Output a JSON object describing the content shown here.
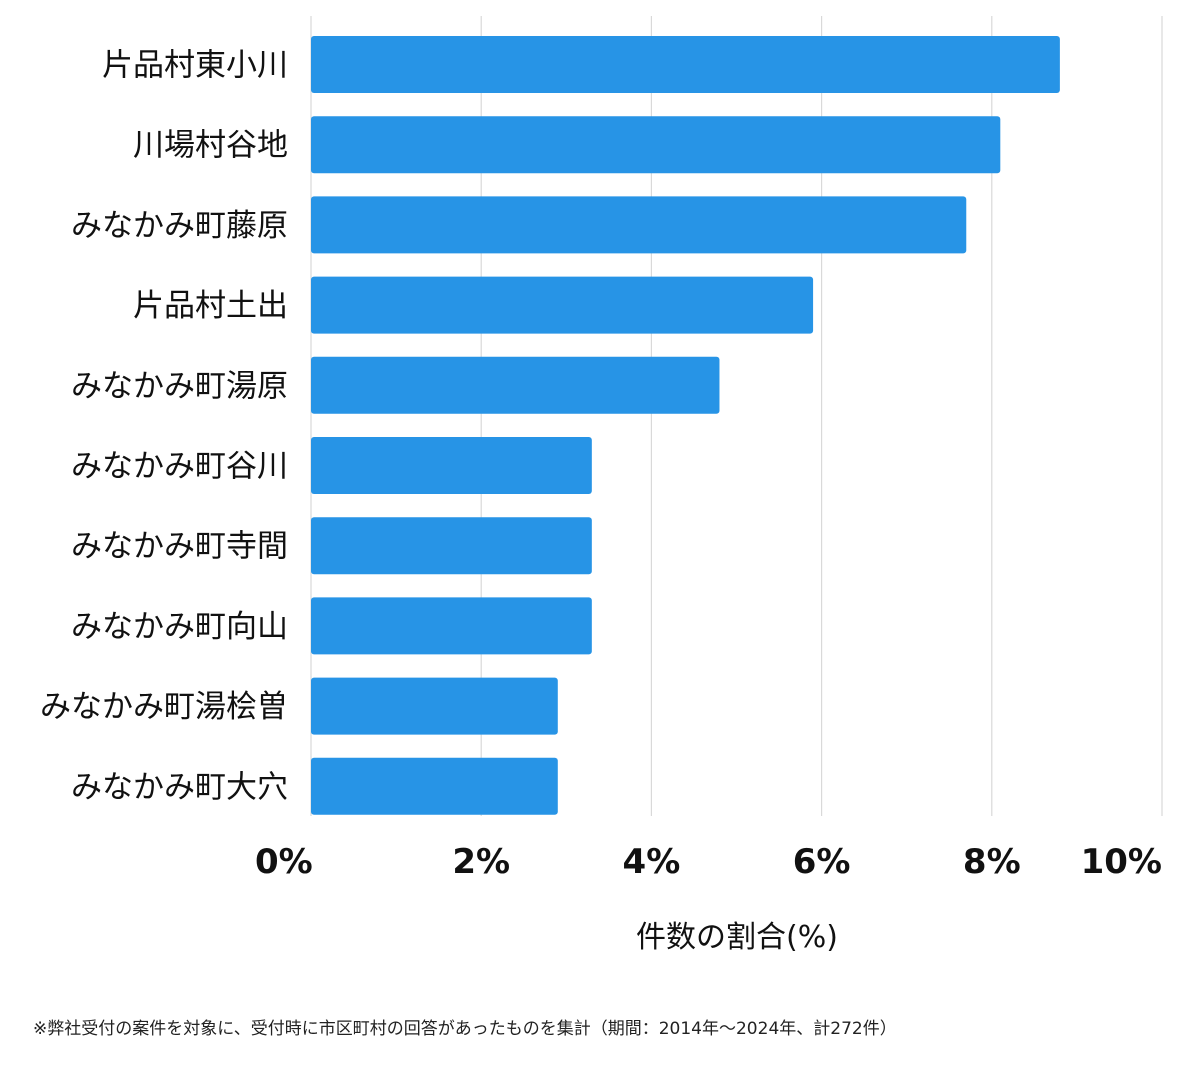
{
  "chart_data": {
    "type": "bar",
    "orientation": "horizontal",
    "categories": [
      "片品村東小川",
      "川場村谷地",
      "みなかみ町藤原",
      "片品村土出",
      "みなかみ町湯原",
      "みなかみ町谷川",
      "みなかみ町寺間",
      "みなかみ町向山",
      "みなかみ町湯桧曽",
      "みなかみ町大穴"
    ],
    "values": [
      8.8,
      8.1,
      7.7,
      5.9,
      4.8,
      3.3,
      3.3,
      3.3,
      2.9,
      2.9
    ],
    "xlim": [
      0,
      10
    ],
    "xticks": [
      0,
      2,
      4,
      6,
      8,
      10
    ],
    "xtick_labels": [
      "0%",
      "2%",
      "4%",
      "6%",
      "8%",
      "10%"
    ],
    "xlabel": "件数の割合(%)",
    "ylabel": "",
    "title": "",
    "grid": "vertical",
    "bar_color": "#2794e6",
    "grid_color": "#d9d9d9"
  },
  "footnote": "※弊社受付の案件を対象に、受付時に市区町村の回答があったものを集計（期間：2014年～2024年、計272件）"
}
